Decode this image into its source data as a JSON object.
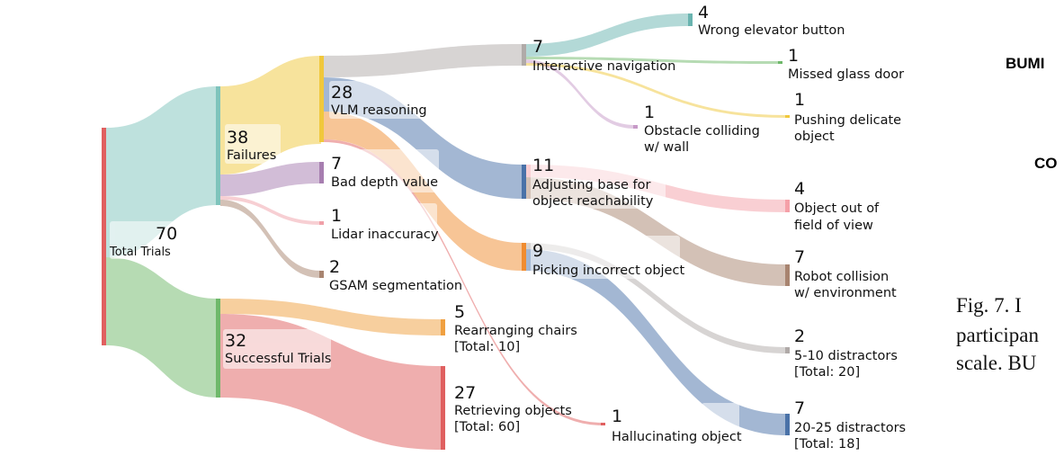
{
  "colors": {
    "total": "#e06060",
    "failures": "#7fc4bc",
    "successful": "#6fb86a",
    "vlm": "#f0c83c",
    "bad_depth": "#a77eb0",
    "lidar": "#f0a0a8",
    "gsam": "#a88470",
    "chairs": "#f0a040",
    "retrieving": "#e06060",
    "interactive": "#b0aaa8",
    "adjusting": "#4a72a8",
    "picking": "#f08c30",
    "elevator": "#6ab4b0",
    "glass": "#6fb86a",
    "obstacle": "#c79ac8",
    "delicate": "#f0c83c",
    "fov": "#f5a0a8",
    "collision": "#a88470",
    "hallucinating": "#e06060",
    "d510": "#b0aaa8",
    "d2025": "#4a72a8"
  },
  "nodes": {
    "total": {
      "value": "70",
      "label": "Total Trials"
    },
    "failures": {
      "value": "38",
      "label": "Failures"
    },
    "successful": {
      "value": "32",
      "label": "Successful Trials"
    },
    "vlm": {
      "value": "28",
      "label": "VLM reasoning"
    },
    "bad_depth": {
      "value": "7",
      "label": "Bad depth value"
    },
    "lidar": {
      "value": "1",
      "label": "Lidar inaccuracy"
    },
    "gsam": {
      "value": "2",
      "label": "GSAM segmentation"
    },
    "chairs": {
      "value": "5",
      "label1": "Rearranging chairs",
      "label2": "[Total: 10]"
    },
    "retrieving": {
      "value": "27",
      "label1": "Retrieving objects",
      "label2": "[Total: 60]"
    },
    "interactive": {
      "value": "7",
      "label": "Interactive navigation"
    },
    "adjusting": {
      "value": "11",
      "label1": "Adjusting base for",
      "label2": "object reachability"
    },
    "picking": {
      "value": "9",
      "label": "Picking incorrect object"
    },
    "elevator": {
      "value": "4",
      "label": "Wrong elevator button"
    },
    "glass": {
      "value": "1",
      "label": "Missed glass door"
    },
    "obstacle": {
      "value": "1",
      "label1": "Obstacle colliding",
      "label2": "w/ wall"
    },
    "delicate": {
      "value": "1",
      "label1": "Pushing delicate",
      "label2": "object"
    },
    "fov": {
      "value": "4",
      "label1": "Object out of",
      "label2": "field of view"
    },
    "collision": {
      "value": "7",
      "label1": "Robot collision",
      "label2": "w/ environment"
    },
    "hallucinating": {
      "value": "1",
      "label": "Hallucinating object"
    },
    "d510": {
      "value": "2",
      "label1": "5-10 distractors",
      "label2": "[Total: 20]"
    },
    "d2025": {
      "value": "7",
      "label1": "20-25 distractors",
      "label2": "[Total: 18]"
    }
  },
  "side_text": {
    "bumi": "BUMI",
    "co": "CO",
    "caption_line1": "Fig. 7.    I",
    "caption_line2": "participan",
    "caption_line3": "scale. BU"
  }
}
